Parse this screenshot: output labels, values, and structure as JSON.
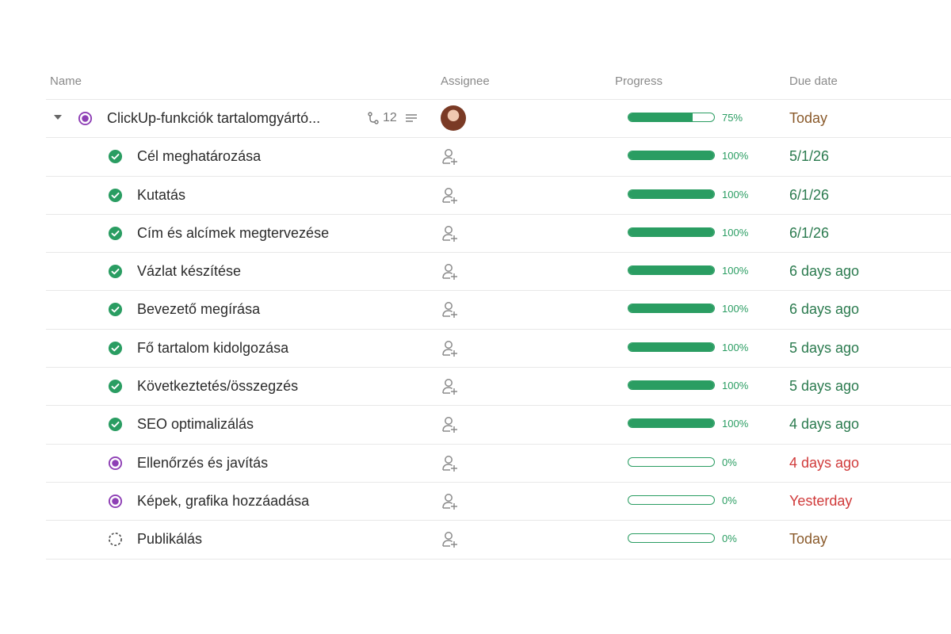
{
  "columns": {
    "name": "Name",
    "assignee": "Assignee",
    "progress": "Progress",
    "due_date": "Due date"
  },
  "parent": {
    "name": "ClickUp-funkciók tartalomgyártó...",
    "subtask_count": "12",
    "progress_pct": 75,
    "progress_label": "75%",
    "due": "Today",
    "due_color": "#8a5a2b",
    "status": "in-progress"
  },
  "tasks": [
    {
      "name": "Cél meghatározása",
      "status": "done",
      "progress_pct": 100,
      "progress_label": "100%",
      "due": "5/1/26",
      "due_color": "#2a7a4e"
    },
    {
      "name": "Kutatás",
      "status": "done",
      "progress_pct": 100,
      "progress_label": "100%",
      "due": "6/1/26",
      "due_color": "#2a7a4e"
    },
    {
      "name": "Cím és alcímek megtervezése",
      "status": "done",
      "progress_pct": 100,
      "progress_label": "100%",
      "due": "6/1/26",
      "due_color": "#2a7a4e"
    },
    {
      "name": "Vázlat készítése",
      "status": "done",
      "progress_pct": 100,
      "progress_label": "100%",
      "due": "6 days ago",
      "due_color": "#2a7a4e"
    },
    {
      "name": "Bevezető megírása",
      "status": "done",
      "progress_pct": 100,
      "progress_label": "100%",
      "due": "6 days ago",
      "due_color": "#2a7a4e"
    },
    {
      "name": "Fő tartalom kidolgozása",
      "status": "done",
      "progress_pct": 100,
      "progress_label": "100%",
      "due": "5 days ago",
      "due_color": "#2a7a4e"
    },
    {
      "name": "Következtetés/összegzés",
      "status": "done",
      "progress_pct": 100,
      "progress_label": "100%",
      "due": "5 days ago",
      "due_color": "#2a7a4e"
    },
    {
      "name": "SEO optimalizálás",
      "status": "done",
      "progress_pct": 100,
      "progress_label": "100%",
      "due": "4 days ago",
      "due_color": "#2a7a4e"
    },
    {
      "name": "Ellenőrzés és javítás",
      "status": "in-progress",
      "progress_pct": 0,
      "progress_label": "0%",
      "due": "4 days ago",
      "due_color": "#d03a3a"
    },
    {
      "name": "Képek, grafika hozzáadása",
      "status": "in-progress",
      "progress_pct": 0,
      "progress_label": "0%",
      "due": "Yesterday",
      "due_color": "#d03a3a"
    },
    {
      "name": "Publikálás",
      "status": "todo",
      "progress_pct": 0,
      "progress_label": "0%",
      "due": "Today",
      "due_color": "#8a5a2b"
    }
  ],
  "icons": {
    "done": "check-circle-icon",
    "in-progress": "in-progress-circle-icon",
    "todo": "dashed-circle-icon",
    "assignee": "add-assignee-icon",
    "subtasks": "subtasks-icon",
    "description": "description-icon"
  },
  "colors": {
    "done": "#2a9d62",
    "in_progress": "#8e3fb5",
    "progress": "#2a9d62"
  }
}
